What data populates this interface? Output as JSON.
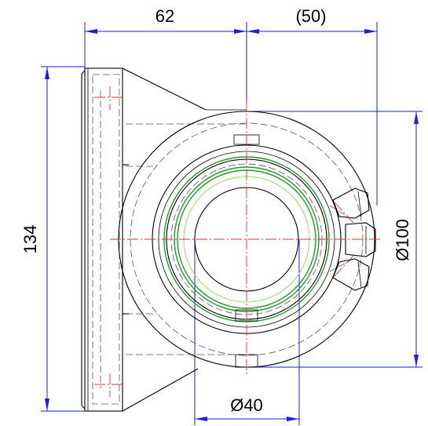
{
  "dimensions": {
    "top_left": "62",
    "top_right": "(50)",
    "left_height": "134",
    "right_diameter": "Ø100",
    "bottom_diameter": "Ø40"
  },
  "colors": {
    "outline": "#000000",
    "dimension": "#1a1aff",
    "centerline": "#e8282b",
    "highlight": "#1f9a2a",
    "highlight_light": "#a8e070"
  }
}
